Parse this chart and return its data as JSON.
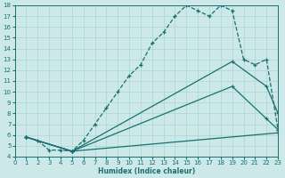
{
  "xlabel": "Humidex (Indice chaleur)",
  "bg_color": "#cce8e8",
  "line_color": "#1a7070",
  "grid_color": "#aad4d4",
  "xlim": [
    0,
    23
  ],
  "ylim": [
    4,
    18
  ],
  "xticks": [
    0,
    1,
    2,
    3,
    4,
    5,
    6,
    7,
    8,
    9,
    10,
    11,
    12,
    13,
    14,
    15,
    16,
    17,
    18,
    19,
    20,
    21,
    22,
    23
  ],
  "yticks": [
    4,
    5,
    6,
    7,
    8,
    9,
    10,
    11,
    12,
    13,
    14,
    15,
    16,
    17,
    18
  ],
  "curve1_x": [
    1,
    2,
    3,
    4,
    5,
    6,
    7,
    8,
    9,
    10,
    11,
    12,
    13,
    14,
    15,
    16,
    17,
    18,
    19,
    20,
    21,
    22,
    23
  ],
  "curve1_y": [
    5.8,
    5.5,
    4.6,
    4.6,
    4.5,
    5.5,
    7.0,
    8.5,
    10.0,
    11.5,
    12.5,
    14.5,
    15.5,
    17.0,
    18.0,
    17.5,
    17.0,
    18.0,
    17.5,
    13.0,
    12.5,
    13.0,
    6.5
  ],
  "curve2_x": [
    1,
    5,
    23
  ],
  "curve2_y": [
    5.8,
    4.5,
    6.2
  ],
  "curve3_x": [
    1,
    5,
    19,
    22,
    23
  ],
  "curve3_y": [
    5.8,
    4.5,
    10.5,
    7.5,
    6.5
  ],
  "curve4_x": [
    1,
    5,
    19,
    22,
    23
  ],
  "curve4_y": [
    5.8,
    4.5,
    12.8,
    10.5,
    8.0
  ]
}
